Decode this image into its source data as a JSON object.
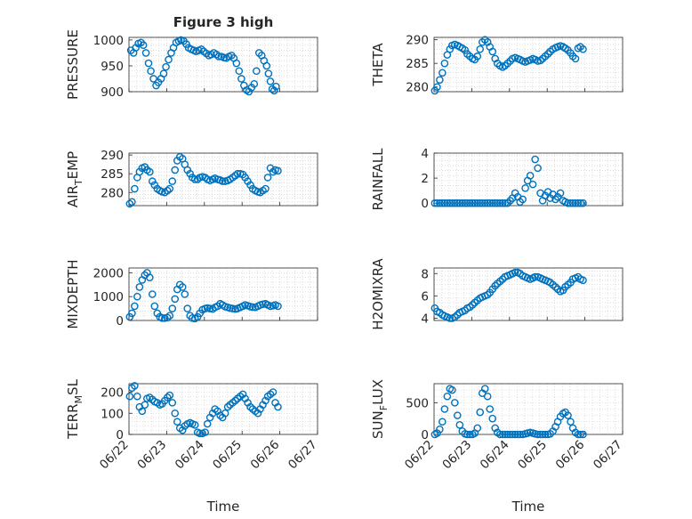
{
  "figure_title": "Figure 3 high",
  "xlabel": "Time",
  "marker_color": "#0072BD",
  "chart_data": [
    {
      "type": "scatter",
      "ylabel": "PRESSURE",
      "xlim": [
        0,
        5
      ],
      "ylim": [
        900,
        1005
      ],
      "yticks": [
        900,
        950,
        1000
      ],
      "xticks": [],
      "grid": true,
      "x": [
        0.05,
        0.12,
        0.18,
        0.25,
        0.32,
        0.38,
        0.45,
        0.52,
        0.58,
        0.65,
        0.72,
        0.78,
        0.85,
        0.92,
        0.98,
        1.05,
        1.12,
        1.18,
        1.25,
        1.32,
        1.38,
        1.45,
        1.52,
        1.58,
        1.65,
        1.72,
        1.78,
        1.85,
        1.92,
        1.98,
        2.05,
        2.12,
        2.18,
        2.25,
        2.32,
        2.38,
        2.45,
        2.52,
        2.58,
        2.65,
        2.72,
        2.78,
        2.85,
        2.92,
        2.98,
        3.05,
        3.12,
        3.18,
        3.25,
        3.32,
        3.38,
        3.45,
        3.52,
        3.58,
        3.65,
        3.7,
        3.75,
        3.8,
        3.85,
        3.9
      ],
      "y": [
        980,
        975,
        985,
        993,
        995,
        990,
        975,
        955,
        940,
        925,
        912,
        918,
        925,
        935,
        948,
        962,
        975,
        985,
        995,
        998,
        1000,
        998,
        992,
        985,
        982,
        980,
        978,
        980,
        982,
        978,
        974,
        970,
        972,
        975,
        972,
        968,
        968,
        966,
        965,
        968,
        970,
        965,
        955,
        940,
        925,
        912,
        903,
        900,
        908,
        915,
        940,
        975,
        970,
        960,
        950,
        935,
        920,
        905,
        902,
        910
      ]
    },
    {
      "type": "scatter",
      "ylabel": "THETA",
      "xlim": [
        0,
        5
      ],
      "ylim": [
        279,
        290.5
      ],
      "yticks": [
        280,
        285,
        290
      ],
      "xticks": [],
      "grid": true,
      "x": [
        0.02,
        0.08,
        0.15,
        0.22,
        0.28,
        0.35,
        0.42,
        0.48,
        0.55,
        0.62,
        0.68,
        0.75,
        0.82,
        0.88,
        0.95,
        1.02,
        1.08,
        1.15,
        1.22,
        1.28,
        1.35,
        1.42,
        1.48,
        1.55,
        1.62,
        1.68,
        1.75,
        1.82,
        1.88,
        1.95,
        2.02,
        2.08,
        2.15,
        2.22,
        2.28,
        2.35,
        2.42,
        2.48,
        2.55,
        2.62,
        2.68,
        2.75,
        2.82,
        2.88,
        2.95,
        3.02,
        3.08,
        3.15,
        3.22,
        3.28,
        3.35,
        3.42,
        3.48,
        3.55,
        3.62,
        3.68,
        3.75,
        3.82,
        3.88,
        3.95
      ],
      "y": [
        279.2,
        280,
        281.5,
        283,
        285,
        286.8,
        288,
        288.8,
        289,
        288.8,
        288.5,
        288.2,
        287.8,
        287,
        286.5,
        286,
        285.8,
        286.5,
        288,
        289.5,
        290,
        289.5,
        288.5,
        287.5,
        286,
        285,
        284.5,
        284.2,
        284.5,
        285,
        285.5,
        286,
        286.2,
        286,
        285.8,
        285.5,
        285.3,
        285.5,
        285.7,
        286,
        285.8,
        285.5,
        285.6,
        286,
        286.5,
        287,
        287.5,
        288,
        288.3,
        288.5,
        288.7,
        288.5,
        288.2,
        287.8,
        287.2,
        286.5,
        286,
        288.2,
        288.5,
        288
      ]
    },
    {
      "type": "scatter",
      "ylabel": "AIR_TEMP",
      "xlim": [
        0,
        5
      ],
      "ylim": [
        276.5,
        290.5
      ],
      "yticks": [
        280,
        285,
        290
      ],
      "xticks": [],
      "grid": true,
      "x": [
        0.02,
        0.08,
        0.15,
        0.22,
        0.28,
        0.35,
        0.42,
        0.48,
        0.55,
        0.62,
        0.68,
        0.75,
        0.82,
        0.88,
        0.95,
        1.02,
        1.08,
        1.15,
        1.22,
        1.28,
        1.35,
        1.42,
        1.48,
        1.55,
        1.62,
        1.68,
        1.75,
        1.82,
        1.88,
        1.95,
        2.02,
        2.08,
        2.15,
        2.22,
        2.28,
        2.35,
        2.42,
        2.48,
        2.55,
        2.62,
        2.68,
        2.75,
        2.82,
        2.88,
        2.95,
        3.02,
        3.08,
        3.15,
        3.22,
        3.28,
        3.35,
        3.42,
        3.48,
        3.55,
        3.62,
        3.68,
        3.75,
        3.82,
        3.88,
        3.95
      ],
      "y": [
        277,
        277.5,
        281,
        284,
        285.5,
        286.5,
        286.8,
        286,
        285.5,
        283,
        282,
        281,
        280.5,
        280.2,
        280,
        280.5,
        281,
        283,
        286,
        288.5,
        289.5,
        289,
        287.5,
        286,
        285,
        284,
        283.5,
        283.5,
        284,
        284.2,
        284,
        283.5,
        283.2,
        283.5,
        283.8,
        283.5,
        283.3,
        283,
        283,
        283.2,
        283.5,
        284,
        284.5,
        285,
        285,
        284.8,
        284,
        283,
        282,
        281,
        280.5,
        280.2,
        280,
        280.5,
        281,
        284,
        286.5,
        285.5,
        286,
        285.8
      ]
    },
    {
      "type": "scatter",
      "ylabel": "RAINFALL",
      "xlim": [
        0,
        5
      ],
      "ylim": [
        -0.2,
        4
      ],
      "yticks": [
        0,
        2,
        4
      ],
      "xticks": [],
      "grid": true,
      "x": [
        0.02,
        0.08,
        0.15,
        0.22,
        0.28,
        0.35,
        0.42,
        0.48,
        0.55,
        0.62,
        0.68,
        0.75,
        0.82,
        0.88,
        0.95,
        1.02,
        1.08,
        1.15,
        1.22,
        1.28,
        1.35,
        1.42,
        1.48,
        1.55,
        1.62,
        1.68,
        1.75,
        1.82,
        1.88,
        1.95,
        2.02,
        2.08,
        2.15,
        2.22,
        2.28,
        2.35,
        2.42,
        2.48,
        2.55,
        2.62,
        2.68,
        2.75,
        2.82,
        2.88,
        2.95,
        3.02,
        3.08,
        3.15,
        3.22,
        3.28,
        3.35,
        3.42,
        3.48,
        3.55,
        3.62,
        3.68,
        3.75,
        3.82,
        3.88,
        3.95
      ],
      "y": [
        0,
        0,
        0,
        0,
        0,
        0,
        0,
        0,
        0,
        0,
        0,
        0,
        0,
        0,
        0,
        0,
        0,
        0,
        0,
        0,
        0,
        0,
        0,
        0,
        0,
        0,
        0,
        0,
        0,
        0,
        0.2,
        0.4,
        0.8,
        0.5,
        0.1,
        0.3,
        1.2,
        1.8,
        2.2,
        1.5,
        3.5,
        2.8,
        0.8,
        0.2,
        0.6,
        0.9,
        0.4,
        0.7,
        0.3,
        0.5,
        0.8,
        0.2,
        0.1,
        0,
        0,
        0,
        0,
        0,
        0,
        0
      ]
    },
    {
      "type": "scatter",
      "ylabel": "MIXDEPTH",
      "xlim": [
        0,
        5
      ],
      "ylim": [
        0,
        2200
      ],
      "yticks": [
        0,
        1000,
        2000
      ],
      "xticks": [],
      "grid": true,
      "x": [
        0.02,
        0.08,
        0.15,
        0.22,
        0.28,
        0.35,
        0.42,
        0.48,
        0.55,
        0.62,
        0.68,
        0.75,
        0.82,
        0.88,
        0.95,
        1.02,
        1.08,
        1.15,
        1.22,
        1.28,
        1.35,
        1.42,
        1.48,
        1.55,
        1.62,
        1.68,
        1.75,
        1.82,
        1.88,
        1.95,
        2.02,
        2.08,
        2.15,
        2.22,
        2.28,
        2.35,
        2.42,
        2.48,
        2.55,
        2.62,
        2.68,
        2.75,
        2.82,
        2.88,
        2.95,
        3.02,
        3.08,
        3.15,
        3.22,
        3.28,
        3.35,
        3.42,
        3.48,
        3.55,
        3.62,
        3.68,
        3.75,
        3.82,
        3.88,
        3.95
      ],
      "y": [
        150,
        300,
        600,
        1000,
        1400,
        1700,
        1900,
        2000,
        1800,
        1100,
        600,
        300,
        150,
        100,
        100,
        120,
        200,
        500,
        900,
        1300,
        1500,
        1400,
        1100,
        500,
        200,
        100,
        80,
        150,
        300,
        450,
        500,
        520,
        500,
        480,
        550,
        600,
        700,
        650,
        580,
        550,
        520,
        500,
        480,
        500,
        550,
        600,
        650,
        620,
        580,
        560,
        550,
        600,
        650,
        680,
        700,
        650,
        600,
        620,
        650,
        600
      ]
    },
    {
      "type": "scatter",
      "ylabel": "H2OMIXRA",
      "xlim": [
        0,
        5
      ],
      "ylim": [
        3.8,
        8.5
      ],
      "yticks": [
        4,
        6,
        8
      ],
      "xticks": [],
      "grid": true,
      "x": [
        0.02,
        0.08,
        0.15,
        0.22,
        0.28,
        0.35,
        0.42,
        0.48,
        0.55,
        0.62,
        0.68,
        0.75,
        0.82,
        0.88,
        0.95,
        1.02,
        1.08,
        1.15,
        1.22,
        1.28,
        1.35,
        1.42,
        1.48,
        1.55,
        1.62,
        1.68,
        1.75,
        1.82,
        1.88,
        1.95,
        2.02,
        2.08,
        2.15,
        2.22,
        2.28,
        2.35,
        2.42,
        2.48,
        2.55,
        2.62,
        2.68,
        2.75,
        2.82,
        2.88,
        2.95,
        3.02,
        3.08,
        3.15,
        3.22,
        3.28,
        3.35,
        3.42,
        3.48,
        3.55,
        3.62,
        3.68,
        3.75,
        3.82,
        3.88,
        3.95
      ],
      "y": [
        4.9,
        4.6,
        4.5,
        4.3,
        4.2,
        4.1,
        4.0,
        4.0,
        4.1,
        4.3,
        4.5,
        4.6,
        4.7,
        4.9,
        5.0,
        5.2,
        5.4,
        5.6,
        5.8,
        5.9,
        6.0,
        6.1,
        6.3,
        6.6,
        6.9,
        7.1,
        7.3,
        7.5,
        7.7,
        7.8,
        7.9,
        8.0,
        8.1,
        8.1,
        8.0,
        7.8,
        7.7,
        7.6,
        7.5,
        7.6,
        7.7,
        7.7,
        7.6,
        7.5,
        7.4,
        7.3,
        7.2,
        7.0,
        6.8,
        6.6,
        6.4,
        6.5,
        6.8,
        7.0,
        7.2,
        7.5,
        7.6,
        7.7,
        7.5,
        7.4
      ]
    },
    {
      "type": "scatter",
      "ylabel": "TERR_MSL",
      "xlim": [
        0,
        5
      ],
      "ylim": [
        0,
        240
      ],
      "yticks": [
        0,
        100,
        200
      ],
      "xticks": [
        "06/22",
        "06/23",
        "06/24",
        "06/25",
        "06/26",
        "06/27"
      ],
      "grid": true,
      "x": [
        0.02,
        0.08,
        0.15,
        0.22,
        0.28,
        0.35,
        0.42,
        0.48,
        0.55,
        0.62,
        0.68,
        0.75,
        0.82,
        0.88,
        0.95,
        1.02,
        1.08,
        1.15,
        1.22,
        1.28,
        1.35,
        1.42,
        1.48,
        1.55,
        1.62,
        1.68,
        1.75,
        1.82,
        1.88,
        1.95,
        2.02,
        2.08,
        2.15,
        2.22,
        2.28,
        2.35,
        2.42,
        2.48,
        2.55,
        2.62,
        2.68,
        2.75,
        2.82,
        2.88,
        2.95,
        3.02,
        3.08,
        3.15,
        3.22,
        3.28,
        3.35,
        3.42,
        3.48,
        3.55,
        3.62,
        3.68,
        3.75,
        3.82,
        3.88,
        3.95
      ],
      "y": [
        180,
        220,
        230,
        180,
        130,
        110,
        140,
        170,
        175,
        165,
        155,
        150,
        140,
        145,
        160,
        175,
        185,
        150,
        100,
        60,
        30,
        20,
        40,
        50,
        55,
        50,
        45,
        10,
        5,
        5,
        10,
        50,
        80,
        100,
        120,
        110,
        90,
        80,
        100,
        130,
        140,
        150,
        160,
        170,
        180,
        190,
        170,
        150,
        130,
        120,
        110,
        100,
        120,
        140,
        160,
        180,
        190,
        200,
        150,
        130
      ]
    },
    {
      "type": "scatter",
      "ylabel": "SUN_FLUX",
      "xlim": [
        0,
        5
      ],
      "ylim": [
        0,
        800
      ],
      "yticks": [
        0,
        500
      ],
      "xticks": [
        "06/22",
        "06/23",
        "06/24",
        "06/25",
        "06/26",
        "06/27"
      ],
      "grid": true,
      "x": [
        0.02,
        0.08,
        0.15,
        0.22,
        0.28,
        0.35,
        0.42,
        0.48,
        0.55,
        0.62,
        0.68,
        0.75,
        0.82,
        0.88,
        0.95,
        1.02,
        1.08,
        1.15,
        1.22,
        1.28,
        1.35,
        1.42,
        1.48,
        1.55,
        1.62,
        1.68,
        1.75,
        1.82,
        1.88,
        1.95,
        2.02,
        2.08,
        2.15,
        2.22,
        2.28,
        2.35,
        2.42,
        2.48,
        2.55,
        2.62,
        2.68,
        2.75,
        2.82,
        2.88,
        2.95,
        3.02,
        3.08,
        3.15,
        3.22,
        3.28,
        3.35,
        3.42,
        3.48,
        3.55,
        3.62,
        3.68,
        3.75,
        3.82,
        3.88,
        3.95
      ],
      "y": [
        0,
        20,
        80,
        200,
        400,
        600,
        720,
        700,
        500,
        300,
        150,
        50,
        10,
        0,
        0,
        0,
        20,
        100,
        350,
        650,
        720,
        600,
        400,
        250,
        100,
        30,
        0,
        0,
        0,
        0,
        0,
        0,
        0,
        0,
        0,
        0,
        10,
        20,
        30,
        20,
        10,
        0,
        0,
        0,
        0,
        0,
        10,
        50,
        120,
        200,
        280,
        330,
        350,
        300,
        200,
        100,
        30,
        0,
        0,
        0
      ]
    }
  ]
}
